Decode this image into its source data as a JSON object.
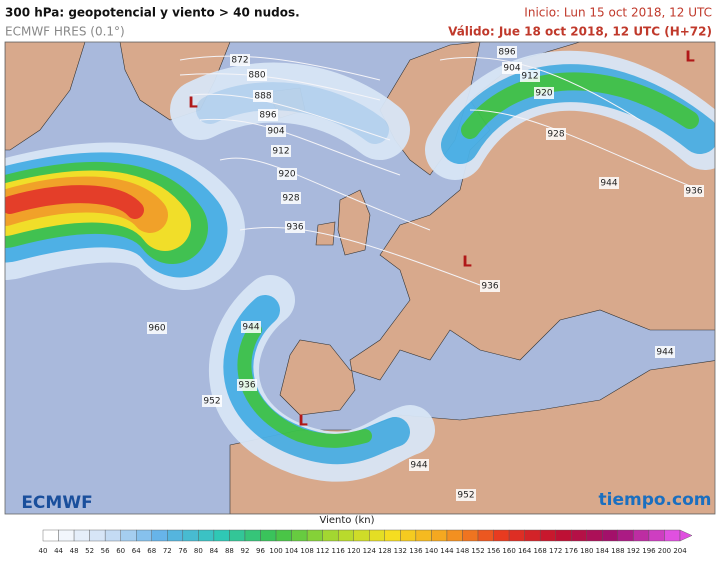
{
  "header": {
    "title": "300 hPa: geopotencial y viento > 40 nudos.",
    "model": "ECMWF HRES (0.1°)",
    "init": "Inicio: Lun 15 oct 2018, 12 UTC",
    "valid": "Válido: Jue 18 oct 2018, 12 UTC (H+72)"
  },
  "map": {
    "contour_labels": [
      872,
      880,
      888,
      896,
      904,
      912,
      920,
      928,
      936,
      896,
      904,
      912,
      920,
      928,
      944,
      936,
      936,
      944,
      960,
      952,
      944,
      936,
      944,
      952
    ],
    "lows": [
      "L",
      "L",
      "L",
      "L"
    ]
  },
  "logos": {
    "left": "ECMWF",
    "right": "tiempo.com"
  },
  "colorbar": {
    "label": "Viento (kn)",
    "ticks": [
      40,
      44,
      48,
      52,
      56,
      60,
      64,
      68,
      72,
      76,
      80,
      84,
      88,
      92,
      96,
      100,
      104,
      108,
      112,
      116,
      120,
      124,
      128,
      132,
      136,
      140,
      144,
      148,
      152,
      156,
      160,
      164,
      168,
      172,
      176,
      180,
      184,
      188,
      192,
      196,
      200,
      204
    ],
    "color_stops": [
      "#ffffff",
      "#cfe0f5",
      "#5fb0e8",
      "#2fc8b8",
      "#3cc24a",
      "#a8d830",
      "#f5e020",
      "#f5a020",
      "#e83820",
      "#c01030",
      "#a01070",
      "#e050e0"
    ]
  }
}
